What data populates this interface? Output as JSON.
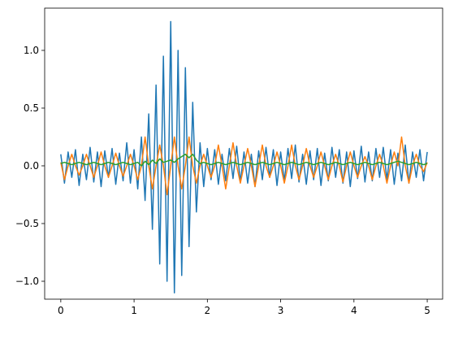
{
  "chart_data": {
    "type": "line",
    "x": [
      0,
      0.05,
      0.1,
      0.15,
      0.2,
      0.25,
      0.3,
      0.35,
      0.4,
      0.45,
      0.5,
      0.55,
      0.6,
      0.65,
      0.7,
      0.75,
      0.8,
      0.85,
      0.9,
      0.95,
      1,
      1.05,
      1.1,
      1.15,
      1.2,
      1.25,
      1.3,
      1.35,
      1.4,
      1.45,
      1.5,
      1.55,
      1.6,
      1.65,
      1.7,
      1.75,
      1.8,
      1.85,
      1.9,
      1.95,
      2,
      2.05,
      2.1,
      2.15,
      2.2,
      2.25,
      2.3,
      2.35,
      2.4,
      2.45,
      2.5,
      2.55,
      2.6,
      2.65,
      2.7,
      2.75,
      2.8,
      2.85,
      2.9,
      2.95,
      3,
      3.05,
      3.1,
      3.15,
      3.2,
      3.25,
      3.3,
      3.35,
      3.4,
      3.45,
      3.5,
      3.55,
      3.6,
      3.65,
      3.7,
      3.75,
      3.8,
      3.85,
      3.9,
      3.95,
      4,
      4.05,
      4.1,
      4.15,
      4.2,
      4.25,
      4.3,
      4.35,
      4.4,
      4.45,
      4.5,
      4.55,
      4.6,
      4.65,
      4.7,
      4.75,
      4.8,
      4.85,
      4.9,
      4.95,
      5
    ],
    "series": [
      {
        "color": "#1f77b4",
        "values": [
          0.1,
          -0.15,
          0.12,
          -0.1,
          0.14,
          -0.17,
          0.1,
          -0.12,
          0.16,
          -0.14,
          0.12,
          -0.18,
          0.13,
          -0.1,
          0.15,
          -0.16,
          0.11,
          -0.13,
          0.2,
          -0.15,
          0.14,
          -0.2,
          0.25,
          -0.3,
          0.45,
          -0.55,
          0.7,
          -0.85,
          0.95,
          -1.0,
          1.25,
          -1.1,
          1.0,
          -0.95,
          0.85,
          -0.7,
          0.55,
          -0.4,
          0.2,
          -0.18,
          0.15,
          -0.12,
          0.14,
          -0.16,
          0.1,
          -0.13,
          0.15,
          -0.11,
          0.17,
          -0.14,
          0.12,
          -0.15,
          0.1,
          -0.18,
          0.13,
          -0.12,
          0.16,
          -0.1,
          0.14,
          -0.17,
          0.12,
          -0.13,
          0.15,
          -0.11,
          0.18,
          -0.14,
          0.1,
          -0.16,
          0.13,
          -0.12,
          0.15,
          -0.17,
          0.11,
          -0.13,
          0.16,
          -0.1,
          0.14,
          -0.15,
          0.12,
          -0.18,
          0.13,
          -0.11,
          0.17,
          -0.14,
          0.12,
          -0.13,
          0.15,
          -0.1,
          0.16,
          -0.12,
          0.14,
          -0.16,
          0.11,
          -0.13,
          0.18,
          -0.15,
          0.12,
          -0.1,
          0.14,
          -0.13,
          0.12
        ]
      },
      {
        "color": "#ff7f0e",
        "values": [
          0.03,
          -0.12,
          0.0,
          0.1,
          0.0,
          -0.08,
          0.0,
          0.1,
          0.0,
          -0.1,
          0.0,
          0.12,
          0.0,
          -0.1,
          0.0,
          0.11,
          0.0,
          -0.09,
          0.0,
          0.1,
          0.0,
          -0.12,
          0.0,
          0.25,
          0.0,
          -0.2,
          0.0,
          0.18,
          0.0,
          -0.25,
          0.0,
          0.25,
          0.0,
          -0.2,
          0.0,
          0.25,
          0.0,
          -0.15,
          0.0,
          0.1,
          0.0,
          -0.1,
          0.0,
          0.18,
          0.0,
          -0.2,
          0.0,
          0.2,
          0.0,
          -0.15,
          0.0,
          0.15,
          0.0,
          -0.18,
          0.0,
          0.18,
          0.0,
          -0.1,
          0.0,
          0.12,
          0.0,
          -0.15,
          0.0,
          0.18,
          0.0,
          -0.12,
          0.0,
          0.15,
          0.0,
          -0.1,
          0.0,
          0.12,
          0.0,
          -0.12,
          0.0,
          0.1,
          0.0,
          -0.14,
          0.0,
          0.12,
          0.0,
          -0.1,
          0.0,
          0.08,
          0.0,
          -0.12,
          0.0,
          0.1,
          0.0,
          -0.15,
          0.0,
          0.12,
          0.0,
          0.25,
          0.0,
          -0.15,
          0.0,
          0.1,
          0.0,
          -0.05,
          0.03
        ]
      },
      {
        "color": "#2ca02c",
        "values": [
          0.02,
          0.03,
          0.02,
          0.01,
          0.02,
          0.03,
          0.02,
          0.01,
          0.02,
          0.03,
          0.02,
          0.01,
          0.02,
          0.03,
          0.02,
          0.01,
          0.02,
          0.03,
          0.02,
          0.01,
          0.02,
          0.03,
          0.0,
          0.04,
          0.01,
          0.05,
          0.02,
          0.06,
          0.03,
          0.04,
          0.05,
          0.03,
          0.06,
          0.08,
          0.1,
          0.07,
          0.1,
          0.05,
          0.02,
          0.03,
          0.02,
          0.01,
          0.02,
          0.03,
          0.02,
          0.01,
          0.02,
          0.03,
          0.02,
          0.01,
          0.02,
          0.03,
          0.02,
          0.01,
          0.02,
          0.03,
          0.02,
          0.01,
          0.02,
          0.03,
          0.02,
          0.01,
          0.02,
          0.03,
          0.02,
          0.01,
          0.02,
          0.03,
          0.02,
          0.01,
          0.02,
          0.03,
          0.02,
          0.01,
          0.02,
          0.03,
          0.02,
          0.01,
          0.02,
          0.03,
          0.02,
          0.01,
          0.02,
          0.03,
          0.02,
          0.01,
          0.02,
          0.03,
          0.02,
          0.01,
          0.02,
          0.03,
          0.04,
          0.03,
          0.02,
          0.01,
          0.02,
          0.03,
          0.02,
          0.01,
          0.02
        ]
      }
    ],
    "xlim": [
      -0.22,
      5.21
    ],
    "xticks": [
      0,
      1,
      2,
      3,
      4,
      5
    ],
    "ylim": [
      -1.155,
      1.366
    ],
    "yticks": [
      {
        "value": -1,
        "label": "−1.0"
      },
      {
        "value": -0.5,
        "label": "−0.5"
      },
      {
        "value": 0,
        "label": "0.0"
      },
      0.5,
      {
        "value": 1,
        "label": "1.0"
      }
    ]
  }
}
